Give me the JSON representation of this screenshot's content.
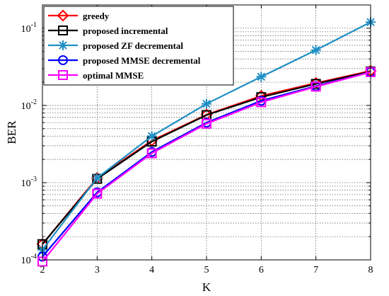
{
  "chart_data": {
    "type": "line",
    "title": "",
    "xlabel": "K",
    "ylabel": "BER",
    "x": [
      2,
      3,
      4,
      5,
      6,
      7,
      8
    ],
    "xlim": [
      2,
      8
    ],
    "ylim": [
      0.0001,
      0.2
    ],
    "yscale": "log",
    "grid": true,
    "legend_position": "top-left",
    "xticks": [
      "2",
      "3",
      "4",
      "5",
      "6",
      "7",
      "8"
    ],
    "yticks": [
      {
        "value": 0.0001,
        "base": "10",
        "exp": "-4"
      },
      {
        "value": 0.001,
        "base": "10",
        "exp": "-3"
      },
      {
        "value": 0.01,
        "base": "10",
        "exp": "-2"
      },
      {
        "value": 0.1,
        "base": "10",
        "exp": "-1"
      }
    ],
    "series": [
      {
        "name": "greedy",
        "color": "#ff0000",
        "marker": "diamond",
        "values": [
          0.00016,
          0.00115,
          0.0035,
          0.0076,
          0.0133,
          0.0195,
          0.028
        ]
      },
      {
        "name": "proposed incremental",
        "color": "#000000",
        "marker": "square",
        "values": [
          0.00016,
          0.00112,
          0.0034,
          0.0075,
          0.0128,
          0.019,
          0.0275
        ]
      },
      {
        "name": "proposed ZF decremental",
        "color": "#1f8fc4",
        "marker": "asterisk",
        "values": [
          0.000135,
          0.00115,
          0.004,
          0.0105,
          0.0235,
          0.052,
          0.12
        ]
      },
      {
        "name": "proposed MMSE decremental",
        "color": "#0000ff",
        "marker": "circle",
        "values": [
          0.00011,
          0.00075,
          0.0025,
          0.006,
          0.0115,
          0.0178,
          0.027
        ]
      },
      {
        "name": "optimal MMSE",
        "color": "#ff00ff",
        "marker": "square",
        "values": [
          9.5e-05,
          0.00072,
          0.0024,
          0.0058,
          0.011,
          0.0175,
          0.027
        ]
      }
    ]
  }
}
